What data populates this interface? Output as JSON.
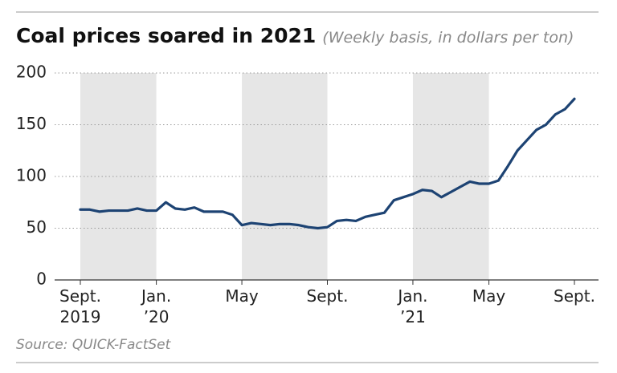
{
  "chart_data": {
    "type": "line",
    "title": "Coal prices soared in 2021",
    "subtitle": "(Weekly basis, in dollars per ton)",
    "source": "Source: QUICK-FactSet",
    "categories": [
      "Sept.\n2019",
      null,
      null,
      null,
      null,
      null,
      null,
      null,
      "Jan.\n’20",
      null,
      null,
      null,
      null,
      null,
      null,
      null,
      null,
      "May",
      null,
      null,
      null,
      null,
      null,
      null,
      null,
      null,
      "Sept.",
      null,
      null,
      null,
      null,
      null,
      null,
      null,
      null,
      "Jan.\n’21",
      null,
      null,
      null,
      null,
      null,
      null,
      null,
      "May",
      null,
      null,
      null,
      null,
      null,
      null,
      null,
      null,
      "Sept."
    ],
    "series": [
      {
        "name": "Coal price",
        "color": "#1d4373",
        "values": [
          68,
          68,
          66,
          67,
          67,
          67,
          69,
          67,
          67,
          75,
          69,
          68,
          70,
          66,
          66,
          66,
          63,
          53,
          55,
          54,
          53,
          54,
          54,
          53,
          51,
          50,
          51,
          57,
          58,
          57,
          61,
          63,
          65,
          77,
          80,
          83,
          87,
          86,
          80,
          85,
          90,
          95,
          93,
          93,
          96,
          110,
          125,
          135,
          145,
          150,
          160,
          165,
          175
        ]
      }
    ],
    "ylim": [
      0,
      200
    ],
    "yticks": [
      0,
      50,
      100,
      150,
      200
    ],
    "grid": true
  }
}
